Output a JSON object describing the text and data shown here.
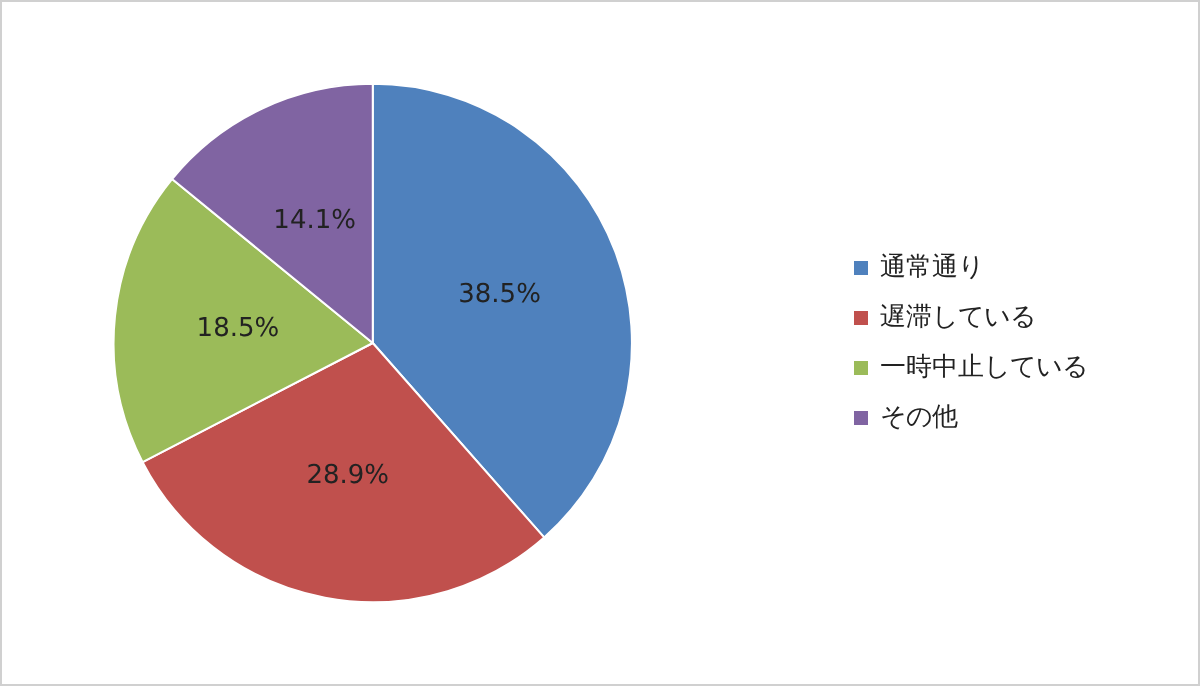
{
  "chart_data": {
    "type": "pie",
    "categories": [
      "通常通り",
      "遅滞している",
      "一時中止している",
      "その他"
    ],
    "values": [
      38.5,
      28.9,
      18.5,
      14.1
    ],
    "value_labels": [
      "38.5%",
      "28.9%",
      "18.5%",
      "14.1%"
    ],
    "colors": [
      "#4f81bd",
      "#c0504d",
      "#9bbb59",
      "#8064a2"
    ],
    "legend": "right"
  }
}
